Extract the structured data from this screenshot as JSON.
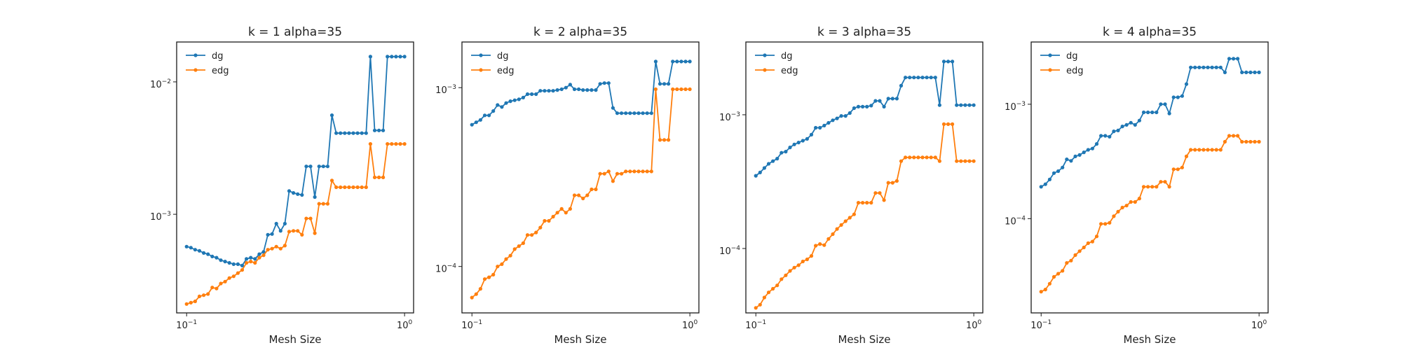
{
  "chart_data": [
    {
      "type": "line",
      "title": "k = 1 alpha=35",
      "xlabel": "Mesh Size",
      "ylabel": "",
      "xscale": "log",
      "yscale": "log",
      "xlim": [
        0.09,
        1.1
      ],
      "ylim": [
        0.00018,
        0.02
      ],
      "xticks": [
        {
          "value": 0.1,
          "base": "10",
          "exp": "−1"
        },
        {
          "value": 1,
          "base": "10",
          "exp": "0"
        }
      ],
      "yticks": [
        {
          "value": 0.001,
          "base": "10",
          "exp": "−3"
        },
        {
          "value": 0.01,
          "base": "10",
          "exp": "−2"
        }
      ],
      "legend": "top-left",
      "grid": false,
      "series": [
        {
          "name": "dg",
          "color": "#1f77b4",
          "y": [
            0.00057,
            0.00056,
            0.00054,
            0.00053,
            0.00051,
            0.0005,
            0.00048,
            0.00047,
            0.00045,
            0.00044,
            0.00043,
            0.00042,
            0.00042,
            0.00041,
            0.00046,
            0.00047,
            0.00046,
            0.0005,
            0.00052,
            0.0007,
            0.00071,
            0.00085,
            0.00075,
            0.00085,
            0.0015,
            0.00145,
            0.00142,
            0.0014,
            0.0023,
            0.0023,
            0.00135,
            0.0023,
            0.0023,
            0.0023,
            0.0056,
            0.0041,
            0.0041,
            0.0041,
            0.0041,
            0.0041,
            0.0041,
            0.0041,
            0.0041,
            0.0155,
            0.0043,
            0.0043,
            0.0043,
            0.0155,
            0.0155,
            0.0155,
            0.0155,
            0.0155
          ]
        },
        {
          "name": "edg",
          "color": "#ff7f0e",
          "y": [
            0.00021,
            0.000215,
            0.00022,
            0.00024,
            0.000245,
            0.00025,
            0.00028,
            0.000275,
            0.0003,
            0.00031,
            0.00033,
            0.00034,
            0.00036,
            0.00038,
            0.00043,
            0.00044,
            0.00043,
            0.00047,
            0.00049,
            0.00054,
            0.00055,
            0.00057,
            0.00055,
            0.00058,
            0.00074,
            0.00075,
            0.00075,
            0.0007,
            0.00093,
            0.00093,
            0.00072,
            0.0012,
            0.0012,
            0.0012,
            0.0018,
            0.0016,
            0.0016,
            0.0016,
            0.0016,
            0.0016,
            0.0016,
            0.0016,
            0.0016,
            0.0034,
            0.0019,
            0.0019,
            0.0019,
            0.0034,
            0.0034,
            0.0034,
            0.0034,
            0.0034
          ]
        }
      ]
    },
    {
      "type": "line",
      "title": "k = 2 alpha=35",
      "xlabel": "Mesh Size",
      "ylabel": "",
      "xscale": "log",
      "yscale": "log",
      "xlim": [
        0.09,
        1.1
      ],
      "ylim": [
        5.5e-05,
        0.0018
      ],
      "xticks": [
        {
          "value": 0.1,
          "base": "10",
          "exp": "−1"
        },
        {
          "value": 1,
          "base": "10",
          "exp": "0"
        }
      ],
      "yticks": [
        {
          "value": 0.0001,
          "base": "10",
          "exp": "−4"
        },
        {
          "value": 0.001,
          "base": "10",
          "exp": "−3"
        }
      ],
      "legend": "top-left",
      "grid": false,
      "series": [
        {
          "name": "dg",
          "color": "#1f77b4",
          "y": [
            0.00062,
            0.00064,
            0.00066,
            0.0007,
            0.0007,
            0.00074,
            0.0008,
            0.00078,
            0.00082,
            0.00084,
            0.00085,
            0.00086,
            0.00088,
            0.00092,
            0.00092,
            0.00092,
            0.00096,
            0.00096,
            0.00096,
            0.00096,
            0.00097,
            0.00098,
            0.001,
            0.00104,
            0.00098,
            0.00098,
            0.00097,
            0.00097,
            0.00097,
            0.00097,
            0.00105,
            0.00106,
            0.00106,
            0.00077,
            0.00072,
            0.00072,
            0.00072,
            0.00072,
            0.00072,
            0.00072,
            0.00072,
            0.00072,
            0.00072,
            0.0014,
            0.00105,
            0.00105,
            0.00105,
            0.0014,
            0.0014,
            0.0014,
            0.0014,
            0.0014
          ]
        },
        {
          "name": "edg",
          "color": "#ff7f0e",
          "y": [
            6.7e-05,
            7e-05,
            7.5e-05,
            8.5e-05,
            8.7e-05,
            9e-05,
            0.0001,
            0.000103,
            0.00011,
            0.000115,
            0.000125,
            0.00013,
            0.000135,
            0.00015,
            0.00015,
            0.000155,
            0.000165,
            0.00018,
            0.00018,
            0.00019,
            0.0002,
            0.00021,
            0.0002,
            0.00021,
            0.00025,
            0.00025,
            0.00024,
            0.00025,
            0.00027,
            0.00027,
            0.00033,
            0.00033,
            0.00034,
            0.0003,
            0.00033,
            0.00033,
            0.00034,
            0.00034,
            0.00034,
            0.00034,
            0.00034,
            0.00034,
            0.00034,
            0.00098,
            0.00051,
            0.00051,
            0.00051,
            0.00098,
            0.00098,
            0.00098,
            0.00098,
            0.00098
          ]
        }
      ]
    },
    {
      "type": "line",
      "title": "k = 3 alpha=35",
      "xlabel": "Mesh Size",
      "ylabel": "",
      "xscale": "log",
      "yscale": "log",
      "xlim": [
        0.09,
        1.1
      ],
      "ylim": [
        3.3e-05,
        0.0035
      ],
      "xticks": [
        {
          "value": 0.1,
          "base": "10",
          "exp": "−1"
        },
        {
          "value": 1,
          "base": "10",
          "exp": "0"
        }
      ],
      "yticks": [
        {
          "value": 0.0001,
          "base": "10",
          "exp": "−4"
        },
        {
          "value": 0.001,
          "base": "10",
          "exp": "−3"
        }
      ],
      "legend": "top-left",
      "grid": false,
      "series": [
        {
          "name": "dg",
          "color": "#1f77b4",
          "y": [
            0.00035,
            0.00037,
            0.0004,
            0.00043,
            0.00045,
            0.00047,
            0.00052,
            0.00053,
            0.00057,
            0.0006,
            0.00062,
            0.00064,
            0.00066,
            0.00071,
            0.0008,
            0.0008,
            0.00083,
            0.00087,
            0.00091,
            0.00094,
            0.00098,
            0.00098,
            0.00103,
            0.00112,
            0.00115,
            0.00115,
            0.00115,
            0.00117,
            0.00127,
            0.00127,
            0.00115,
            0.00132,
            0.00132,
            0.00132,
            0.00165,
            0.0019,
            0.0019,
            0.0019,
            0.0019,
            0.0019,
            0.0019,
            0.0019,
            0.0019,
            0.00118,
            0.0025,
            0.0025,
            0.0025,
            0.00118,
            0.00118,
            0.00118,
            0.00118,
            0.00118
          ]
        },
        {
          "name": "edg",
          "color": "#ff7f0e",
          "y": [
            3.6e-05,
            3.8e-05,
            4.3e-05,
            4.7e-05,
            5e-05,
            5.3e-05,
            5.9e-05,
            6.3e-05,
            6.8e-05,
            7.2e-05,
            7.5e-05,
            8e-05,
            8.3e-05,
            8.8e-05,
            0.000105,
            0.000108,
            0.000106,
            0.000118,
            0.000128,
            0.00014,
            0.00015,
            0.00016,
            0.00017,
            0.00018,
            0.00022,
            0.00022,
            0.00022,
            0.00022,
            0.00026,
            0.00026,
            0.00023,
            0.00031,
            0.00031,
            0.00032,
            0.00045,
            0.00048,
            0.00048,
            0.00048,
            0.00048,
            0.00048,
            0.00048,
            0.00048,
            0.00048,
            0.00045,
            0.00085,
            0.00085,
            0.00085,
            0.00045,
            0.00045,
            0.00045,
            0.00045,
            0.00045
          ]
        }
      ]
    },
    {
      "type": "line",
      "title": "k = 4 alpha=35",
      "xlabel": "Mesh Size",
      "ylabel": "",
      "xscale": "log",
      "yscale": "log",
      "xlim": [
        0.09,
        1.1
      ],
      "ylim": [
        1.5e-05,
        0.0035
      ],
      "xticks": [
        {
          "value": 0.1,
          "base": "10",
          "exp": "−1"
        },
        {
          "value": 1,
          "base": "10",
          "exp": "0"
        }
      ],
      "yticks": [
        {
          "value": 0.0001,
          "base": "10",
          "exp": "−4"
        },
        {
          "value": 0.001,
          "base": "10",
          "exp": "−3"
        }
      ],
      "legend": "top-left",
      "grid": false,
      "series": [
        {
          "name": "dg",
          "color": "#1f77b4",
          "y": [
            0.00019,
            0.0002,
            0.00022,
            0.00025,
            0.00026,
            0.00028,
            0.00033,
            0.00032,
            0.00035,
            0.00036,
            0.00038,
            0.0004,
            0.00041,
            0.00045,
            0.00053,
            0.00053,
            0.00052,
            0.00058,
            0.00059,
            0.00064,
            0.00066,
            0.00069,
            0.00066,
            0.00072,
            0.00085,
            0.00085,
            0.00085,
            0.00085,
            0.001,
            0.001,
            0.00083,
            0.00115,
            0.00115,
            0.00118,
            0.0015,
            0.0021,
            0.0021,
            0.0021,
            0.0021,
            0.0021,
            0.0021,
            0.0021,
            0.0021,
            0.0019,
            0.0025,
            0.0025,
            0.0025,
            0.0019,
            0.0019,
            0.0019,
            0.0019,
            0.0019
          ]
        },
        {
          "name": "edg",
          "color": "#ff7f0e",
          "y": [
            2.3e-05,
            2.4e-05,
            2.7e-05,
            3.1e-05,
            3.3e-05,
            3.5e-05,
            4.1e-05,
            4.3e-05,
            4.8e-05,
            5.2e-05,
            5.6e-05,
            6.1e-05,
            6.3e-05,
            7e-05,
            9e-05,
            9e-05,
            9.2e-05,
            0.000105,
            0.000115,
            0.000125,
            0.00013,
            0.00014,
            0.00014,
            0.00015,
            0.00019,
            0.00019,
            0.00019,
            0.00019,
            0.00021,
            0.00021,
            0.00019,
            0.00027,
            0.00027,
            0.00028,
            0.00035,
            0.0004,
            0.0004,
            0.0004,
            0.0004,
            0.0004,
            0.0004,
            0.0004,
            0.0004,
            0.00047,
            0.00053,
            0.00053,
            0.00053,
            0.00047,
            0.00047,
            0.00047,
            0.00047,
            0.00047
          ]
        }
      ]
    }
  ]
}
